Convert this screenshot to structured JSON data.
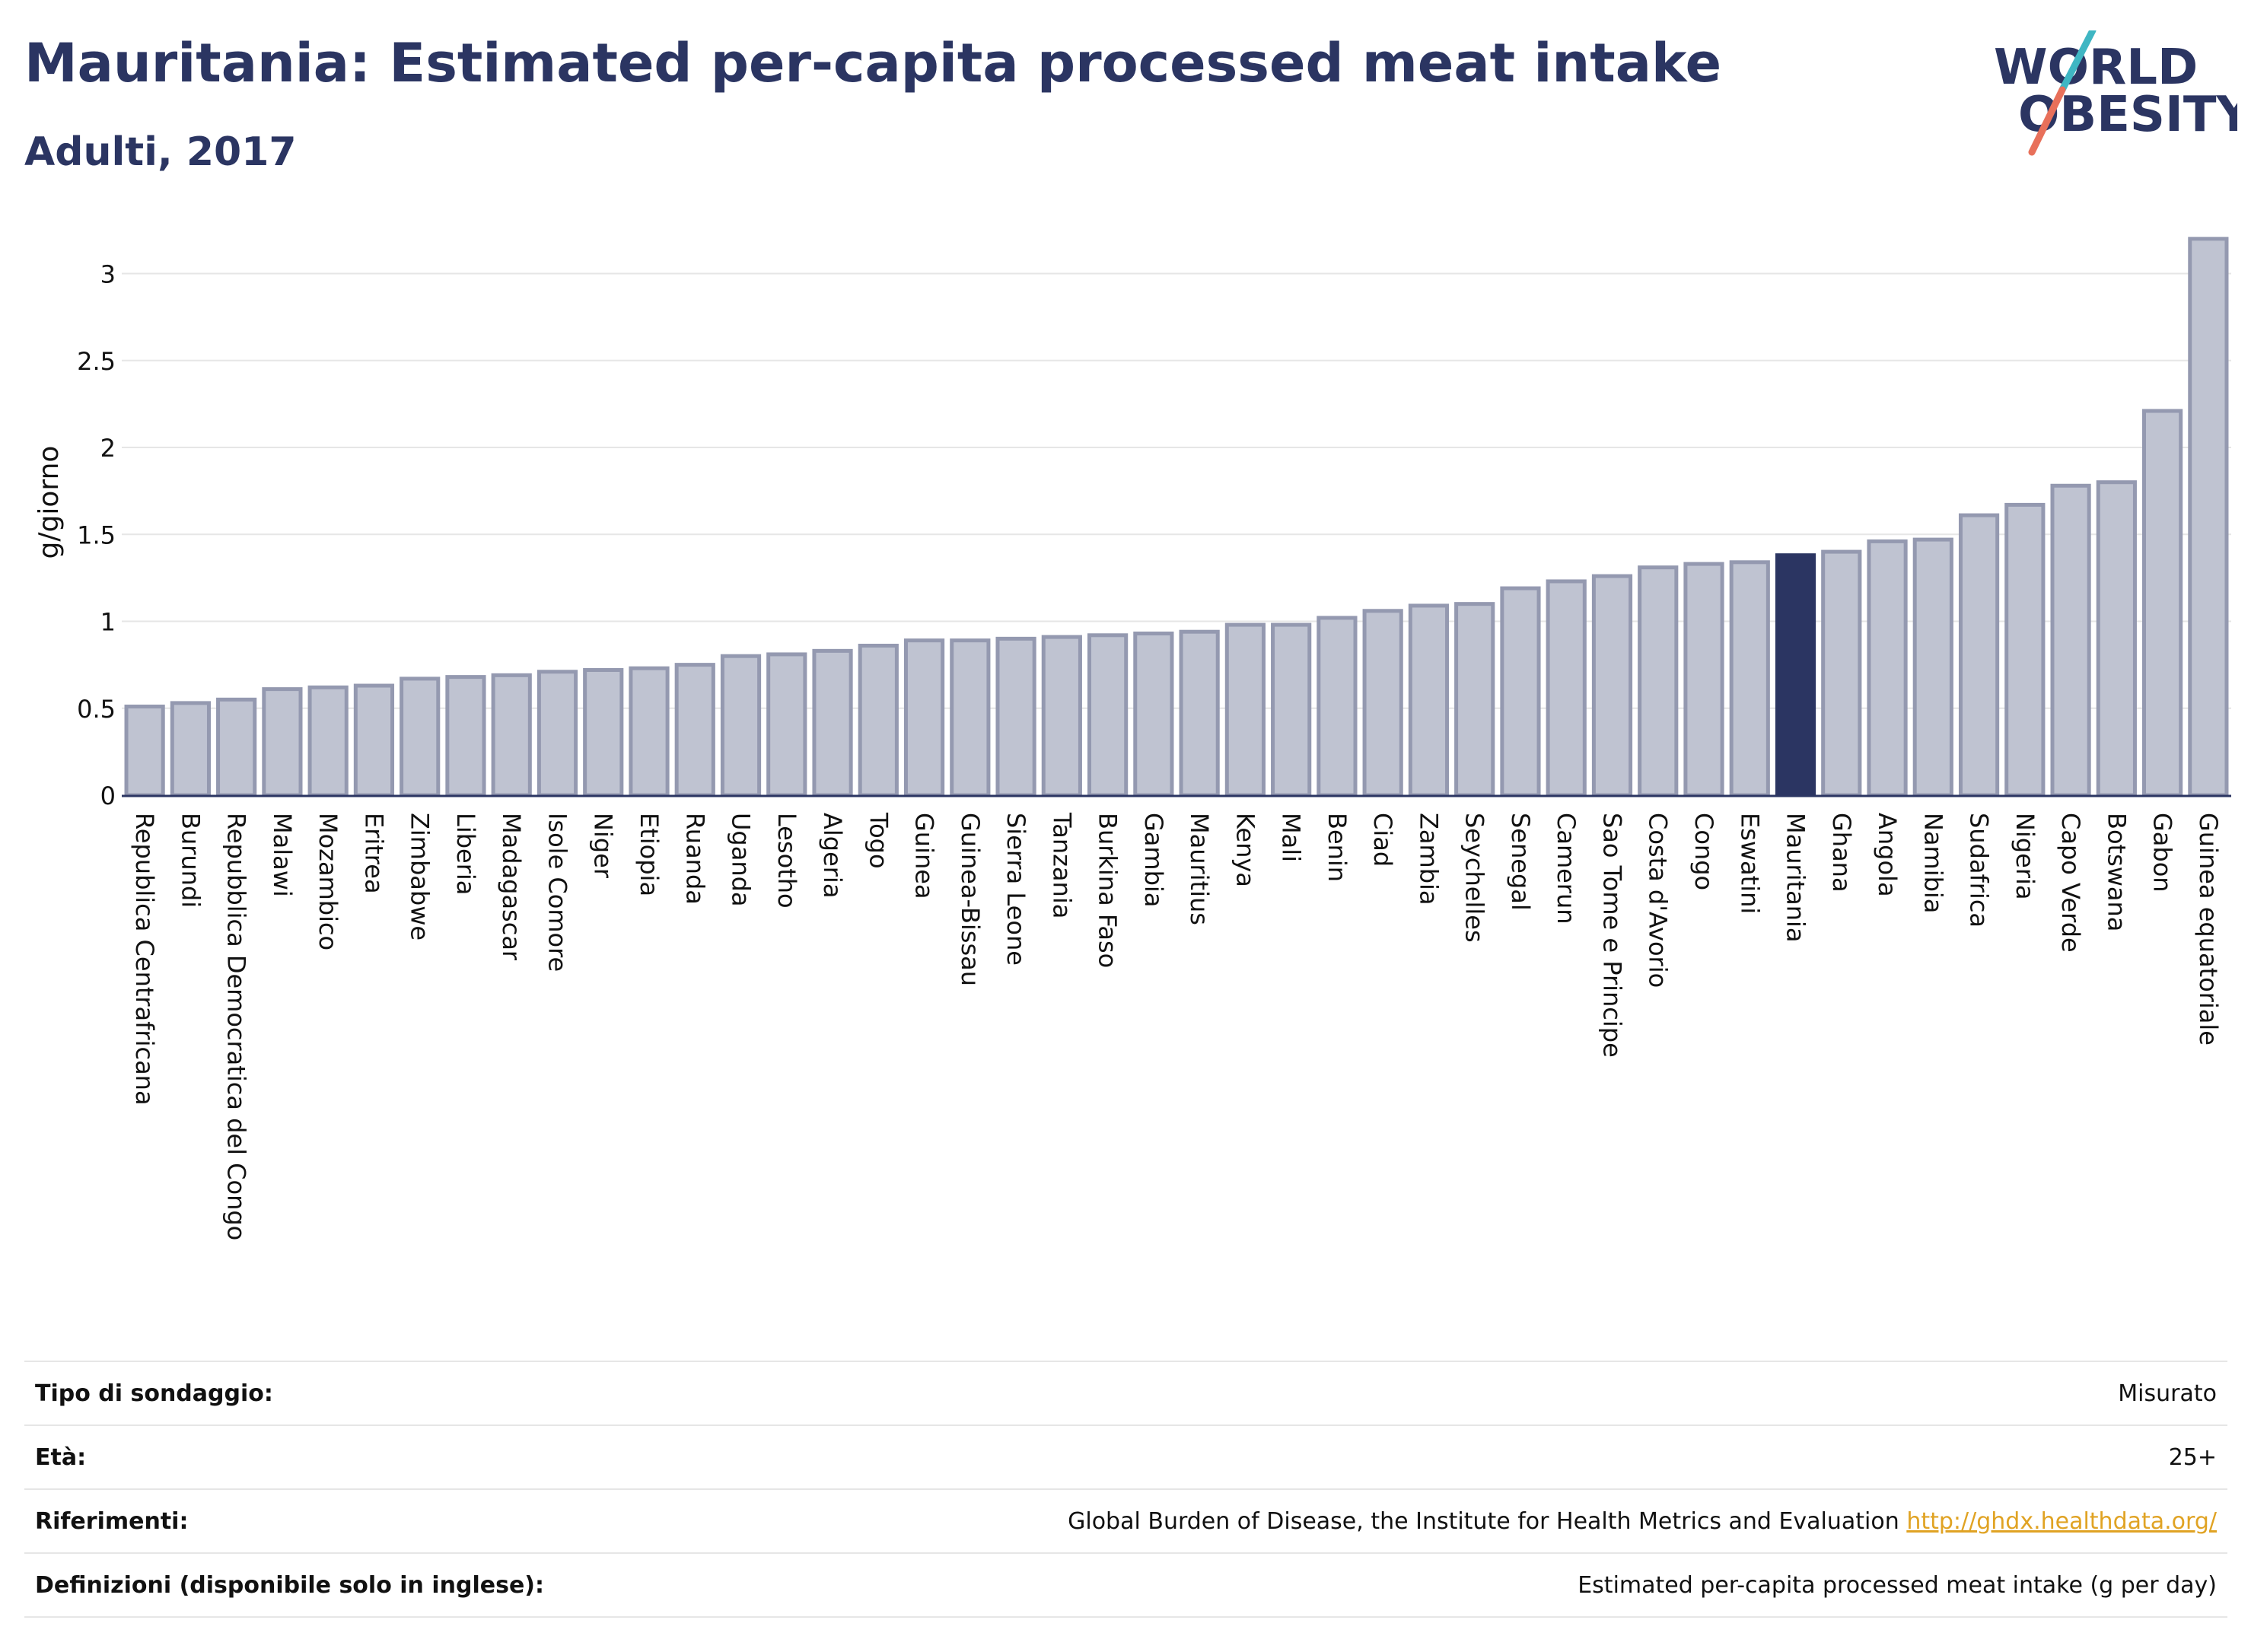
{
  "header": {
    "title": "Mauritania: Estimated per-capita processed meat intake",
    "subtitle": "Adulti, 2017"
  },
  "logo": {
    "line1": "WORLD",
    "line2": "OBESITY"
  },
  "chart_data": {
    "type": "bar",
    "ylabel": "g/giorno",
    "ylim": [
      0,
      3.2
    ],
    "yticks": [
      0,
      0.5,
      1,
      1.5,
      2,
      2.5,
      3
    ],
    "grid": true,
    "highlight": "Mauritania",
    "colors": {
      "bar": "#bfc3d1",
      "bar_edge": "#9499b0",
      "highlight": "#2b3562"
    },
    "categories": [
      "Republica Centrafricana",
      "Burundi",
      "Repubblica Democratica del Congo",
      "Malawi",
      "Mozambico",
      "Eritrea",
      "Zimbabwe",
      "Liberia",
      "Madagascar",
      "Isole Comore",
      "Niger",
      "Etiopia",
      "Ruanda",
      "Uganda",
      "Lesotho",
      "Algeria",
      "Togo",
      "Guinea",
      "Guinea-Bissau",
      "Sierra Leone",
      "Tanzania",
      "Burkina Faso",
      "Gambia",
      "Mauritius",
      "Kenya",
      "Mali",
      "Benin",
      "Ciad",
      "Zambia",
      "Seychelles",
      "Senegal",
      "Camerun",
      "Sao Tome e Principe",
      "Costa d'Avorio",
      "Congo",
      "Eswatini",
      "Mauritania",
      "Ghana",
      "Angola",
      "Namibia",
      "Sudafrica",
      "Nigeria",
      "Capo Verde",
      "Botswana",
      "Gabon",
      "Guinea equatoriale"
    ],
    "values": [
      0.51,
      0.53,
      0.55,
      0.61,
      0.62,
      0.63,
      0.67,
      0.68,
      0.69,
      0.71,
      0.72,
      0.73,
      0.75,
      0.8,
      0.81,
      0.83,
      0.86,
      0.89,
      0.89,
      0.9,
      0.91,
      0.92,
      0.93,
      0.94,
      0.98,
      0.98,
      1.02,
      1.06,
      1.09,
      1.1,
      1.19,
      1.23,
      1.26,
      1.31,
      1.33,
      1.34,
      1.38,
      1.4,
      1.46,
      1.47,
      1.61,
      1.67,
      1.78,
      1.8,
      2.21,
      3.2
    ]
  },
  "info": [
    {
      "key": "Tipo di sondaggio:",
      "value": "Misurato",
      "link": ""
    },
    {
      "key": "Età:",
      "value": "25+",
      "link": ""
    },
    {
      "key": "Riferimenti:",
      "value": "Global Burden of Disease, the Institute for Health Metrics and Evaluation",
      "link": "http://ghdx.healthdata.org/"
    },
    {
      "key": "Definizioni (disponibile solo in inglese):",
      "value": "Estimated per-capita processed meat intake (g per day)",
      "link": ""
    }
  ]
}
